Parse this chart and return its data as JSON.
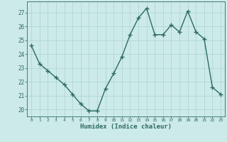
{
  "x": [
    0,
    1,
    2,
    3,
    4,
    5,
    6,
    7,
    8,
    9,
    10,
    11,
    12,
    13,
    14,
    15,
    16,
    17,
    18,
    19,
    20,
    21,
    22,
    23
  ],
  "y": [
    24.6,
    23.3,
    22.8,
    22.3,
    21.8,
    21.1,
    20.4,
    19.9,
    19.9,
    21.5,
    22.6,
    23.8,
    25.4,
    26.6,
    27.3,
    25.4,
    25.4,
    26.1,
    25.6,
    27.1,
    25.6,
    25.1,
    21.6,
    21.1
  ],
  "line_color": "#2d6b5e",
  "marker": "+",
  "marker_size": 4,
  "bg_color": "#cceae8",
  "grid_color": "#aad4d0",
  "tick_color": "#2d6b5e",
  "xlabel": "Humidex (Indice chaleur)",
  "xlabel_color": "#2d6b5e",
  "ylim": [
    19.5,
    27.8
  ],
  "xlim": [
    -0.5,
    23.5
  ],
  "yticks": [
    20,
    21,
    22,
    23,
    24,
    25,
    26,
    27
  ],
  "xticks": [
    0,
    1,
    2,
    3,
    4,
    5,
    6,
    7,
    8,
    9,
    10,
    11,
    12,
    13,
    14,
    15,
    16,
    17,
    18,
    19,
    20,
    21,
    22,
    23
  ],
  "font_family": "monospace",
  "linewidth": 1.0
}
